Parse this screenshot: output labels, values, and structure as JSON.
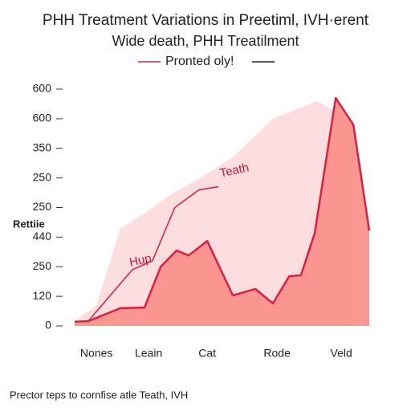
{
  "chart_data": {
    "type": "area",
    "title": "PHH Treatment Variations in Preetiml, IVH·erent",
    "subtitle": "Wide death, PHH Treatilment",
    "legend_label": "Pronted oly!",
    "y_label": "Rettiie",
    "footer": "Prector teps to cornfise atle Teath, IVH",
    "annotations": [
      "Hup",
      "Teath"
    ],
    "xlim": [
      0,
      100
    ],
    "xticks": [
      {
        "value": 7.4,
        "label": "Nones"
      },
      {
        "value": 25.1,
        "label": "Leain"
      },
      {
        "value": 45,
        "label": "Cat"
      },
      {
        "value": 68.7,
        "label": "Rode"
      },
      {
        "value": 90.5,
        "label": "Veld"
      }
    ],
    "ylim": [
      0,
      8
    ],
    "yticks": [
      {
        "value": 0,
        "label": "0"
      },
      {
        "value": 1,
        "label": "120"
      },
      {
        "value": 2,
        "label": "250"
      },
      {
        "value": 3,
        "label": "440"
      },
      {
        "value": 4,
        "label": "250"
      },
      {
        "value": 5,
        "label": "250"
      },
      {
        "value": 6,
        "label": "350"
      },
      {
        "value": 7,
        "label": "600"
      },
      {
        "value": 8,
        "label": "600"
      }
    ],
    "series": [
      {
        "kind": "area",
        "color": "#fbd3d4",
        "x": [
          0,
          7.4,
          15.5,
          23.7,
          31.9,
          42.8,
          53.7,
          67.3,
          82.3,
          89.1,
          94.6
        ],
        "values": [
          0.16,
          0.7,
          3.3,
          3.8,
          4.4,
          5.0,
          5.7,
          7.0,
          7.6,
          7.2,
          6.8
        ]
      },
      {
        "kind": "area",
        "color": "#f98e86",
        "line_color": "#d81f45",
        "x": [
          0,
          4.6,
          15.5,
          23.7,
          29.2,
          34.6,
          38.7,
          45,
          53.7,
          61.3,
          67.3,
          72.8,
          76.8,
          81.5,
          88.6,
          94.6,
          100
        ],
        "values": [
          0.14,
          0.16,
          0.6,
          0.62,
          2.0,
          2.55,
          2.38,
          2.87,
          1.03,
          1.25,
          0.76,
          1.68,
          1.71,
          3.14,
          7.7,
          6.8,
          3.22
        ]
      },
      {
        "kind": "line",
        "color": "#d0284c",
        "x": [
          4.6,
          19.6,
          26.4,
          34,
          42.2,
          48.8
        ],
        "values": [
          0.16,
          1.9,
          2.2,
          4.0,
          4.6,
          4.7
        ]
      }
    ]
  }
}
